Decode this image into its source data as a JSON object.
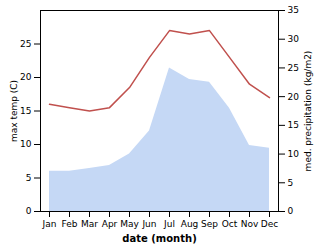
{
  "chart_data": {
    "type": "line",
    "xlabel": "date (month)",
    "ylabel": "max temp (C)",
    "y2label": "med. precipitation (kg/m2)",
    "categories": [
      "Jan",
      "Feb",
      "Mar",
      "Apr",
      "May",
      "Jun",
      "Jul",
      "Aug",
      "Sep",
      "Oct",
      "Nov",
      "Dec"
    ],
    "series": [
      {
        "type": "area",
        "axis": "y2",
        "color": "#c5d8f5",
        "values": [
          7.0,
          7.0,
          7.5,
          8.0,
          10.0,
          14.0,
          25.0,
          23.0,
          22.5,
          18.0,
          11.5,
          11.0
        ]
      },
      {
        "type": "line",
        "color": "#c0504d",
        "values": [
          16.0,
          15.5,
          15.0,
          15.5,
          18.5,
          23.0,
          27.0,
          26.5,
          27.0,
          23.0,
          19.0,
          17.0
        ]
      }
    ],
    "ylim": [
      0,
      30
    ],
    "yticks": [
      0,
      5,
      10,
      15,
      20,
      25
    ],
    "y2lim": [
      0,
      35
    ],
    "y2ticks": [
      0,
      5,
      10,
      15,
      20,
      25,
      30,
      35
    ],
    "grid": false
  }
}
